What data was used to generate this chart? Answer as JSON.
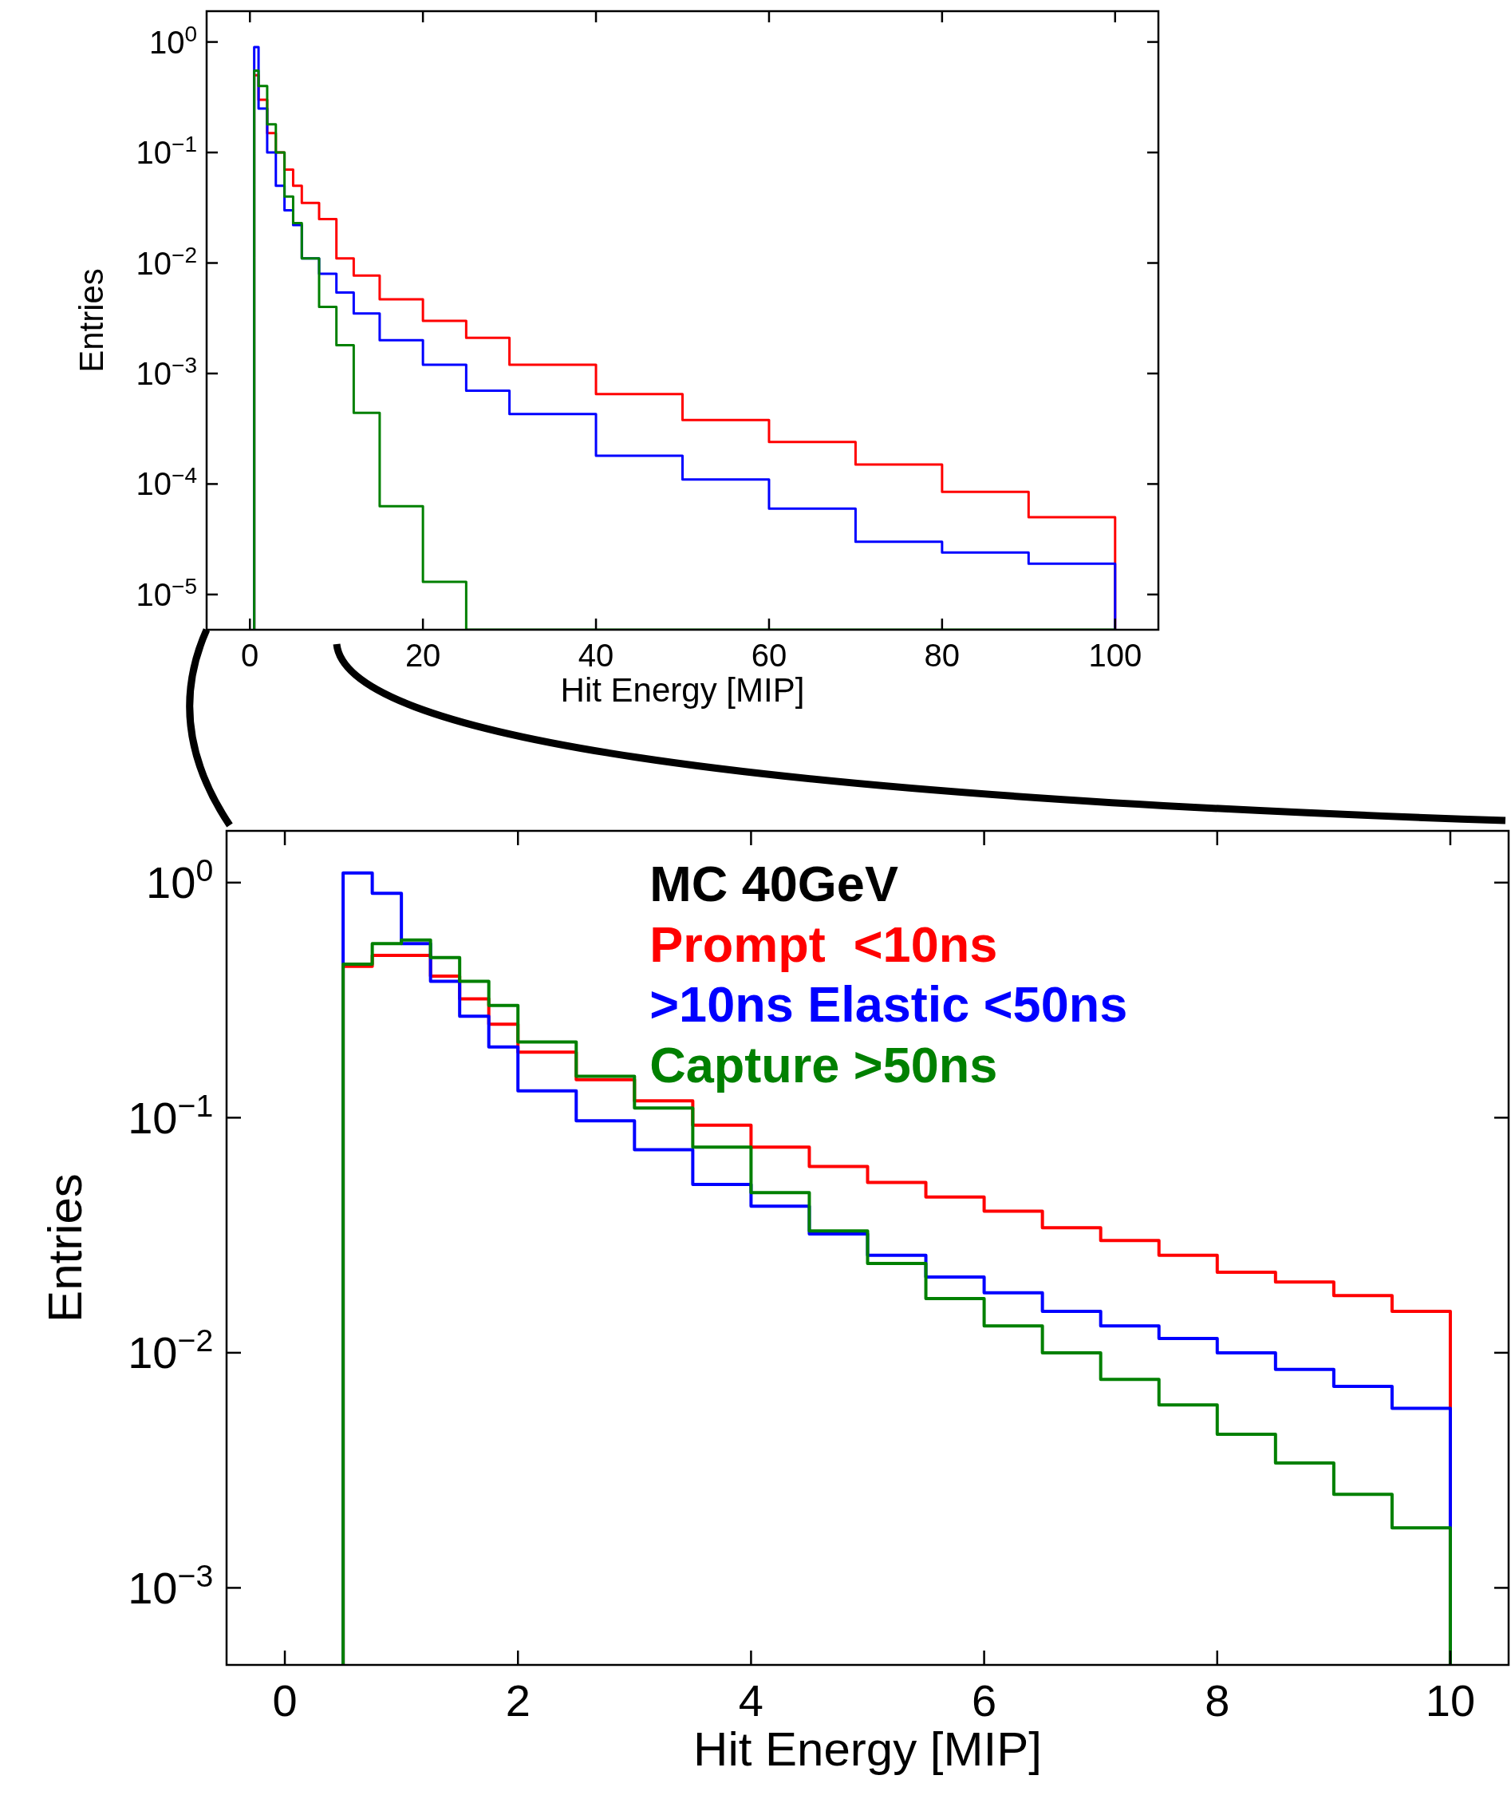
{
  "chart_data": [
    {
      "type": "histogram",
      "xlabel": "Hit Energy [MIP]",
      "ylabel": "Entries",
      "log": true,
      "xlim": [
        -5,
        105
      ],
      "xticks": [
        0,
        20,
        40,
        60,
        80,
        100
      ],
      "ylim": [
        4.8e-06,
        1.9
      ],
      "yticks": [
        {
          "value": 1,
          "label": "10$^{0}$"
        },
        {
          "value": 0.1,
          "label": "10$^{−1}$"
        },
        {
          "value": 0.01,
          "label": "10$^{−2}$"
        },
        {
          "value": 0.001,
          "label": "10$^{−3}$"
        },
        {
          "value": 0.0001,
          "label": "10$^{−4}$"
        },
        {
          "value": 1e-05,
          "label": "10$^{−5}$"
        }
      ],
      "bins": [
        0.5,
        1,
        2,
        3,
        4,
        5,
        6,
        8,
        10,
        12,
        15,
        20,
        25,
        30,
        40,
        50,
        60,
        70,
        80,
        90,
        100
      ],
      "series": [
        {
          "color": "#ff0000",
          "values": [
            0.5,
            0.3,
            0.15,
            0.1,
            0.07,
            0.05,
            0.035,
            0.025,
            0.011,
            0.0077,
            0.0047,
            0.003,
            0.0021,
            0.0012,
            0.00065,
            0.00038,
            0.00024,
            0.00015,
            8.5e-05,
            5e-05
          ]
        },
        {
          "color": "#0000ff",
          "values": [
            0.9,
            0.25,
            0.1,
            0.05,
            0.03,
            0.022,
            0.011,
            0.008,
            0.0054,
            0.0035,
            0.002,
            0.0012,
            0.0007,
            0.00043,
            0.00018,
            0.00011,
            6e-05,
            3e-05,
            2.4e-05,
            1.9e-05
          ]
        },
        {
          "color": "#008000",
          "values": [
            0.55,
            0.4,
            0.18,
            0.1,
            0.04,
            0.023,
            0.011,
            0.004,
            0.0018,
            0.00044,
            6.3e-05,
            1.3e-05,
            null,
            null,
            null,
            null,
            null,
            null,
            null,
            null
          ]
        }
      ]
    },
    {
      "type": "histogram",
      "xlabel": "Hit Energy [MIP]",
      "ylabel": "Entries",
      "log": true,
      "legend": "top right",
      "legend_title": "MC 40GeV",
      "xlim": [
        -0.5,
        10.5
      ],
      "xticks": [
        0,
        2,
        4,
        6,
        8,
        10
      ],
      "ylim": [
        0.00047,
        1.66
      ],
      "yticks": [
        {
          "value": 1,
          "label": "10$^{0}$"
        },
        {
          "value": 0.1,
          "label": "10$^{−1}$"
        },
        {
          "value": 0.01,
          "label": "10$^{−2}$"
        },
        {
          "value": 0.001,
          "label": "10$^{−3}$"
        }
      ],
      "bins": [
        0.5,
        0.75,
        1,
        1.25,
        1.5,
        1.75,
        2,
        2.5,
        3,
        3.5,
        4,
        4.5,
        5,
        5.5,
        6,
        6.5,
        7,
        7.5,
        8,
        8.5,
        9,
        9.5,
        10
      ],
      "series": [
        {
          "name": "Prompt  <10ns",
          "color": "#ff0000",
          "values": [
            0.44,
            0.49,
            0.49,
            0.4,
            0.32,
            0.25,
            0.19,
            0.145,
            0.118,
            0.093,
            0.075,
            0.062,
            0.053,
            0.046,
            0.04,
            0.034,
            0.03,
            0.026,
            0.022,
            0.02,
            0.0175,
            0.015
          ]
        },
        {
          "name": ">10ns Elastic <50ns",
          "color": "#0000ff",
          "values": [
            1.1,
            0.9,
            0.55,
            0.38,
            0.27,
            0.2,
            0.13,
            0.097,
            0.073,
            0.052,
            0.042,
            0.032,
            0.026,
            0.021,
            0.018,
            0.015,
            0.013,
            0.0115,
            0.01,
            0.0085,
            0.0072,
            0.0058
          ]
        },
        {
          "name": "Capture >50ns",
          "color": "#008000",
          "values": [
            0.45,
            0.55,
            0.57,
            0.48,
            0.38,
            0.3,
            0.21,
            0.15,
            0.11,
            0.075,
            0.048,
            0.033,
            0.024,
            0.017,
            0.013,
            0.01,
            0.0077,
            0.006,
            0.0045,
            0.0034,
            0.0025,
            0.0018
          ]
        }
      ]
    }
  ]
}
